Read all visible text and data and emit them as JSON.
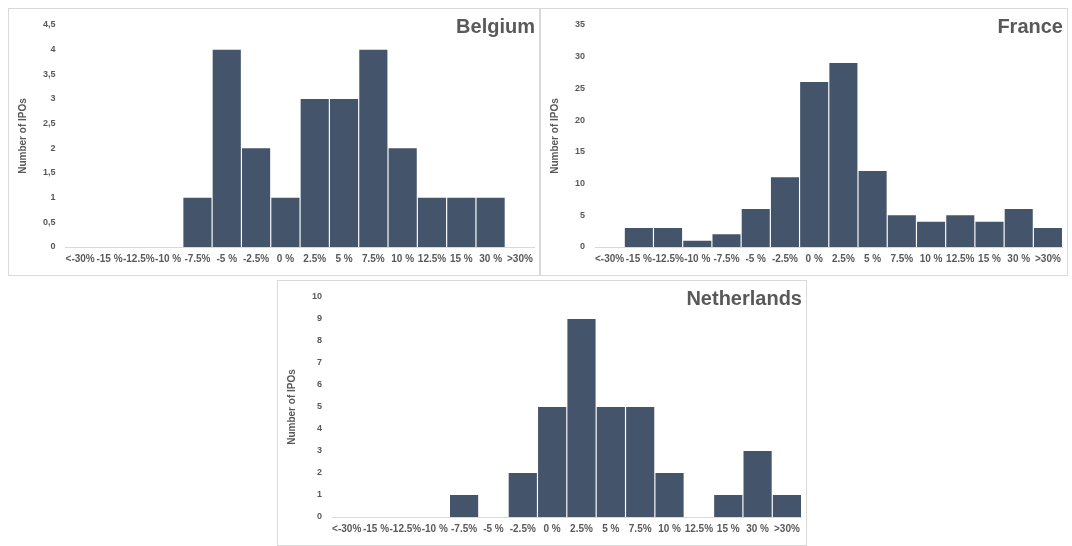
{
  "chart_data": [
    {
      "type": "bar",
      "title": "Belgium",
      "ylabel": "Number of IPOs",
      "categories": [
        "<-30%",
        "-15 %",
        "-12.5%",
        "-10 %",
        "-7.5%",
        "-5 %",
        "-2.5%",
        "0 %",
        "2.5%",
        "5 %",
        "7.5%",
        "10 %",
        "12.5%",
        "15 %",
        "30 %",
        ">30%"
      ],
      "series": [
        {
          "color": "#44546a",
          "values": [
            0,
            0,
            0,
            0,
            1,
            4,
            2,
            1,
            3,
            3,
            4,
            2,
            1,
            1,
            1,
            0
          ]
        }
      ],
      "ylim": [
        0,
        4.5
      ],
      "yticks": [
        0,
        {
          "value": 0.5,
          "label": "0,5"
        },
        1,
        {
          "value": 1.5,
          "label": "1,5"
        },
        2,
        {
          "value": 2.5,
          "label": "2,5"
        },
        3,
        {
          "value": 3.5,
          "label": "3,5"
        },
        4,
        {
          "value": 4.5,
          "label": "4,5"
        }
      ],
      "grid": false,
      "legend": false
    },
    {
      "type": "bar",
      "title": "France",
      "ylabel": "Number of IPOs",
      "categories": [
        "<-30%",
        "-15 %",
        "-12.5%",
        "-10 %",
        "-7.5%",
        "-5 %",
        "-2.5%",
        "0 %",
        "2.5%",
        "5 %",
        "7.5%",
        "10 %",
        "12.5%",
        "15 %",
        "30 %",
        ">30%"
      ],
      "series": [
        {
          "color": "#44546a",
          "values": [
            0,
            3,
            3,
            1,
            2,
            6,
            11,
            26,
            29,
            12,
            5,
            4,
            5,
            4,
            6,
            3
          ]
        }
      ],
      "ylim": [
        0,
        35
      ],
      "yticks": [
        0,
        5,
        10,
        15,
        20,
        25,
        30,
        35
      ],
      "grid": false,
      "legend": false
    },
    {
      "type": "bar",
      "title": "Netherlands",
      "ylabel": "Number of IPOs",
      "categories": [
        "<-30%",
        "-15 %",
        "-12.5%",
        "-10 %",
        "-7.5%",
        "-5 %",
        "-2.5%",
        "0 %",
        "2.5%",
        "5 %",
        "7.5%",
        "10 %",
        "12.5%",
        "15 %",
        "30 %",
        ">30%"
      ],
      "series": [
        {
          "color": "#44546a",
          "values": [
            0,
            0,
            0,
            0,
            1,
            0,
            2,
            5,
            9,
            5,
            5,
            2,
            0,
            1,
            3,
            1
          ]
        }
      ],
      "ylim": [
        0,
        10
      ],
      "yticks": [
        0,
        1,
        2,
        3,
        4,
        5,
        6,
        7,
        8,
        9,
        10
      ],
      "grid": false,
      "legend": false
    }
  ]
}
